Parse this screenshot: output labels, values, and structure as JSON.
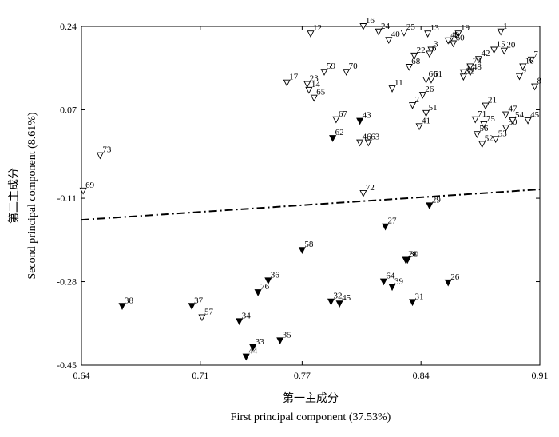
{
  "chart_data": {
    "type": "scatter",
    "title": "",
    "xlabel_cn": "第一主成分",
    "xlabel": "First principal component (37.53%)",
    "ylabel_cn": "第二主成分",
    "ylabel": "Second principal component (8.61%)",
    "xlim": [
      0.64,
      0.91
    ],
    "ylim": [
      -0.45,
      0.24
    ],
    "xticks": [
      "0.64",
      "0.71",
      "0.77",
      "0.84",
      "0.91"
    ],
    "yticks": [
      "0.24",
      "0.07",
      "-0.11",
      "-0.28",
      "-0.45"
    ],
    "grid": false,
    "legend": "none",
    "divider_line": {
      "style": "dash-dot",
      "x": [
        0.64,
        0.91
      ],
      "y": [
        -0.154,
        -0.092
      ]
    },
    "series": [
      {
        "marker": "open-triangle-down",
        "points": [
          {
            "label": "1",
            "x": 0.887,
            "y": 0.229
          },
          {
            "label": "2",
            "x": 0.835,
            "y": 0.079
          },
          {
            "label": "3",
            "x": 0.846,
            "y": 0.192
          },
          {
            "label": "4",
            "x": 0.857,
            "y": 0.211
          },
          {
            "label": "6",
            "x": 0.845,
            "y": 0.184
          },
          {
            "label": "7",
            "x": 0.905,
            "y": 0.172
          },
          {
            "label": "8",
            "x": 0.907,
            "y": 0.117
          },
          {
            "label": "9",
            "x": 0.898,
            "y": 0.138
          },
          {
            "label": "10",
            "x": 0.865,
            "y": 0.146
          },
          {
            "label": "11",
            "x": 0.823,
            "y": 0.113
          },
          {
            "label": "12",
            "x": 0.775,
            "y": 0.225
          },
          {
            "label": "13",
            "x": 0.844,
            "y": 0.225
          },
          {
            "label": "14",
            "x": 0.774,
            "y": 0.11
          },
          {
            "label": "15",
            "x": 0.883,
            "y": 0.192
          },
          {
            "label": "16",
            "x": 0.806,
            "y": 0.24
          },
          {
            "label": "17",
            "x": 0.761,
            "y": 0.125
          },
          {
            "label": "18",
            "x": 0.9,
            "y": 0.158
          },
          {
            "label": "19",
            "x": 0.862,
            "y": 0.225
          },
          {
            "label": "20",
            "x": 0.889,
            "y": 0.19
          },
          {
            "label": "21",
            "x": 0.878,
            "y": 0.078
          },
          {
            "label": "22",
            "x": 0.836,
            "y": 0.18
          },
          {
            "label": "23",
            "x": 0.773,
            "y": 0.122
          },
          {
            "label": "24",
            "x": 0.815,
            "y": 0.229
          },
          {
            "label": "25",
            "x": 0.83,
            "y": 0.227
          },
          {
            "label": "40",
            "x": 0.821,
            "y": 0.212
          },
          {
            "label": "41",
            "x": 0.839,
            "y": 0.036
          },
          {
            "label": "42",
            "x": 0.874,
            "y": 0.173
          },
          {
            "label": "46",
            "x": 0.804,
            "y": 0.003
          },
          {
            "label": "47",
            "x": 0.89,
            "y": 0.06
          },
          {
            "label": "48",
            "x": 0.869,
            "y": 0.146
          },
          {
            "label": "49",
            "x": 0.856,
            "y": 0.211
          },
          {
            "label": "50",
            "x": 0.89,
            "y": 0.033
          },
          {
            "label": "51",
            "x": 0.843,
            "y": 0.063
          },
          {
            "label": "52",
            "x": 0.876,
            "y": 0.0
          },
          {
            "label": "53",
            "x": 0.884,
            "y": 0.01
          },
          {
            "label": "54",
            "x": 0.894,
            "y": 0.048
          },
          {
            "label": "45",
            "x": 0.903,
            "y": 0.048
          },
          {
            "label": "56",
            "x": 0.873,
            "y": 0.02
          },
          {
            "label": "57",
            "x": 0.711,
            "y": -0.353
          },
          {
            "label": "59",
            "x": 0.783,
            "y": 0.147
          },
          {
            "label": "60",
            "x": 0.859,
            "y": 0.205
          },
          {
            "label": "61",
            "x": 0.846,
            "y": 0.131
          },
          {
            "label": "63",
            "x": 0.809,
            "y": 0.003
          },
          {
            "label": "65",
            "x": 0.777,
            "y": 0.094
          },
          {
            "label": "66",
            "x": 0.843,
            "y": 0.131
          },
          {
            "label": "67",
            "x": 0.79,
            "y": 0.05
          },
          {
            "label": "68",
            "x": 0.833,
            "y": 0.157
          },
          {
            "label": "69",
            "x": 0.641,
            "y": -0.095
          },
          {
            "label": "70",
            "x": 0.796,
            "y": 0.147
          },
          {
            "label": "71",
            "x": 0.872,
            "y": 0.05
          },
          {
            "label": "72",
            "x": 0.806,
            "y": -0.1
          },
          {
            "label": "73",
            "x": 0.651,
            "y": -0.023
          },
          {
            "label": "74",
            "x": 0.869,
            "y": 0.158
          },
          {
            "label": "75",
            "x": 0.877,
            "y": 0.04
          },
          {
            "label": "55",
            "x": 0.865,
            "y": 0.137
          },
          {
            "label": "26",
            "x": 0.841,
            "y": 0.1
          }
        ]
      },
      {
        "marker": "filled-triangle-down",
        "points": [
          {
            "label": "29",
            "x": 0.845,
            "y": -0.125
          },
          {
            "label": "27",
            "x": 0.819,
            "y": -0.168
          },
          {
            "label": "58",
            "x": 0.77,
            "y": -0.216
          },
          {
            "label": "30",
            "x": 0.832,
            "y": -0.236
          },
          {
            "label": "28",
            "x": 0.831,
            "y": -0.236
          },
          {
            "label": "62",
            "x": 0.788,
            "y": 0.012
          },
          {
            "label": "43",
            "x": 0.804,
            "y": 0.047
          },
          {
            "label": "26",
            "x": 0.856,
            "y": -0.282
          },
          {
            "label": "64",
            "x": 0.818,
            "y": -0.28
          },
          {
            "label": "39",
            "x": 0.823,
            "y": -0.291
          },
          {
            "label": "31",
            "x": 0.835,
            "y": -0.322
          },
          {
            "label": "32",
            "x": 0.787,
            "y": -0.321
          },
          {
            "label": "45",
            "x": 0.792,
            "y": -0.325
          },
          {
            "label": "36",
            "x": 0.75,
            "y": -0.278
          },
          {
            "label": "76",
            "x": 0.744,
            "y": -0.302
          },
          {
            "label": "34",
            "x": 0.733,
            "y": -0.361
          },
          {
            "label": "35",
            "x": 0.757,
            "y": -0.4
          },
          {
            "label": "33",
            "x": 0.741,
            "y": -0.414
          },
          {
            "label": "44",
            "x": 0.737,
            "y": -0.433
          },
          {
            "label": "38",
            "x": 0.664,
            "y": -0.33
          },
          {
            "label": "37",
            "x": 0.705,
            "y": -0.33
          }
        ]
      }
    ]
  }
}
